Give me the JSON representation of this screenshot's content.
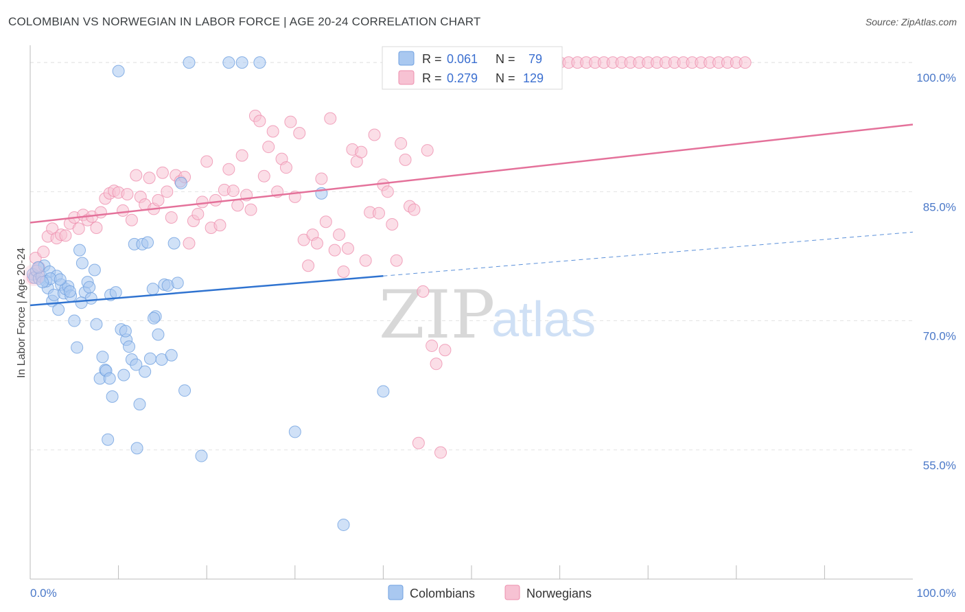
{
  "title": "COLOMBIAN VS NORWEGIAN IN LABOR FORCE | AGE 20-24 CORRELATION CHART",
  "source": "Source: ZipAtlas.com",
  "watermark": {
    "zip": "ZIP",
    "atlas": "atlas"
  },
  "colors": {
    "colombians": "#6fa0e0",
    "colombians_fill": "#a9c8f0",
    "colombians_line": "#2f73d0",
    "norwegians": "#ee8fae",
    "norwegians_fill": "#f7c2d3",
    "norwegians_line": "#e4719a",
    "accent_text": "#3b6fd0"
  },
  "legend_box": {
    "rows": [
      {
        "r_label": "R =",
        "r_value": "0.061",
        "n_label": "N =",
        "n_value": "79"
      },
      {
        "r_label": "R =",
        "r_value": "0.279",
        "n_label": "N =",
        "n_value": "129"
      }
    ]
  },
  "bottom_legend": [
    "Colombians",
    "Norwegians"
  ],
  "chart_data": {
    "type": "scatter",
    "title": "COLOMBIAN VS NORWEGIAN IN LABOR FORCE | AGE 20-24 CORRELATION CHART",
    "xlabel": "",
    "ylabel": "In Labor Force | Age 20-24",
    "xlim": [
      0,
      100
    ],
    "ylim": [
      40,
      102
    ],
    "x_tick_labels": [
      "0.0%",
      "100.0%"
    ],
    "y_ticks": [
      55,
      70,
      85,
      100
    ],
    "y_tick_labels": [
      "55.0%",
      "70.0%",
      "85.0%",
      "100.0%"
    ],
    "grid": true,
    "legend_position": "top-center",
    "series": [
      {
        "name": "Colombians",
        "R": 0.061,
        "N": 79,
        "trend": {
          "x_solid": [
            0,
            40
          ],
          "y_solid": [
            71.8,
            75.2
          ],
          "x_dashed": [
            40,
            100
          ],
          "y_dashed": [
            75.2,
            80.3
          ]
        },
        "points": [
          [
            0.3,
            75.4
          ],
          [
            0.5,
            75.0
          ],
          [
            0.7,
            75.8
          ],
          [
            1.0,
            74.9
          ],
          [
            1.3,
            75.1
          ],
          [
            1.6,
            76.4
          ],
          [
            2.0,
            73.8
          ],
          [
            2.2,
            75.7
          ],
          [
            2.5,
            72.3
          ],
          [
            2.7,
            73.0
          ],
          [
            3.0,
            75.2
          ],
          [
            3.2,
            71.3
          ],
          [
            3.5,
            74.2
          ],
          [
            3.8,
            73.2
          ],
          [
            4.0,
            73.7
          ],
          [
            4.3,
            74.0
          ],
          [
            4.6,
            72.9
          ],
          [
            5.0,
            70.0
          ],
          [
            5.3,
            66.9
          ],
          [
            5.6,
            78.2
          ],
          [
            5.9,
            76.7
          ],
          [
            6.2,
            73.3
          ],
          [
            6.5,
            74.5
          ],
          [
            6.9,
            72.6
          ],
          [
            7.3,
            75.9
          ],
          [
            7.5,
            69.6
          ],
          [
            7.9,
            63.3
          ],
          [
            8.2,
            65.8
          ],
          [
            8.5,
            64.3
          ],
          [
            8.8,
            56.2
          ],
          [
            9.1,
            73.0
          ],
          [
            9.3,
            61.2
          ],
          [
            9.7,
            73.3
          ],
          [
            10.0,
            99.0
          ],
          [
            10.3,
            69.0
          ],
          [
            10.6,
            63.7
          ],
          [
            10.9,
            67.8
          ],
          [
            11.2,
            67.0
          ],
          [
            11.5,
            65.5
          ],
          [
            11.8,
            78.9
          ],
          [
            12.1,
            55.2
          ],
          [
            12.4,
            60.3
          ],
          [
            12.7,
            78.9
          ],
          [
            13.0,
            64.1
          ],
          [
            13.3,
            79.1
          ],
          [
            13.6,
            65.6
          ],
          [
            13.9,
            73.7
          ],
          [
            14.2,
            70.5
          ],
          [
            14.5,
            68.4
          ],
          [
            14.9,
            65.5
          ],
          [
            15.2,
            74.2
          ],
          [
            15.6,
            74.1
          ],
          [
            16.0,
            66.0
          ],
          [
            16.3,
            79.0
          ],
          [
            16.7,
            74.4
          ],
          [
            17.1,
            86.0
          ],
          [
            17.5,
            61.9
          ],
          [
            18.0,
            100.0
          ],
          [
            19.4,
            54.3
          ],
          [
            22.5,
            100.0
          ],
          [
            24.0,
            100.0
          ],
          [
            26.0,
            100.0
          ],
          [
            30.0,
            57.1
          ],
          [
            33.0,
            84.8
          ],
          [
            35.5,
            46.3
          ],
          [
            40.0,
            61.8
          ],
          [
            1.8,
            74.6
          ],
          [
            2.3,
            74.9
          ],
          [
            0.9,
            76.2
          ],
          [
            1.4,
            74.5
          ],
          [
            3.4,
            74.8
          ],
          [
            4.5,
            73.4
          ],
          [
            5.8,
            72.1
          ],
          [
            6.7,
            73.9
          ],
          [
            8.6,
            64.2
          ],
          [
            9.0,
            63.3
          ],
          [
            10.8,
            68.8
          ],
          [
            12.0,
            64.9
          ],
          [
            14.0,
            70.3
          ]
        ]
      },
      {
        "name": "Norwegians",
        "R": 0.279,
        "N": 129,
        "trend": {
          "x_solid": [
            0,
            100
          ],
          "y_solid": [
            81.4,
            92.8
          ]
        },
        "points": [
          [
            0.3,
            75.0
          ],
          [
            0.6,
            77.3
          ],
          [
            1.0,
            76.2
          ],
          [
            1.5,
            78.0
          ],
          [
            2.0,
            79.8
          ],
          [
            2.5,
            80.7
          ],
          [
            3.0,
            79.6
          ],
          [
            3.5,
            80.0
          ],
          [
            4.0,
            79.9
          ],
          [
            4.5,
            81.3
          ],
          [
            5.0,
            82.0
          ],
          [
            5.5,
            80.7
          ],
          [
            6.0,
            82.3
          ],
          [
            6.5,
            81.7
          ],
          [
            7.0,
            82.1
          ],
          [
            7.5,
            80.8
          ],
          [
            8.0,
            82.6
          ],
          [
            8.5,
            84.2
          ],
          [
            9.0,
            84.8
          ],
          [
            9.5,
            85.1
          ],
          [
            10.0,
            84.9
          ],
          [
            10.5,
            82.8
          ],
          [
            11.0,
            84.7
          ],
          [
            11.5,
            81.7
          ],
          [
            12.0,
            86.9
          ],
          [
            12.5,
            84.4
          ],
          [
            13.0,
            83.5
          ],
          [
            13.5,
            86.6
          ],
          [
            14.0,
            83.0
          ],
          [
            14.5,
            84.0
          ],
          [
            15.0,
            87.2
          ],
          [
            15.5,
            85.0
          ],
          [
            16.0,
            82.0
          ],
          [
            16.5,
            86.9
          ],
          [
            17.0,
            86.2
          ],
          [
            17.5,
            86.7
          ],
          [
            18.0,
            79.0
          ],
          [
            18.5,
            81.6
          ],
          [
            19.0,
            82.4
          ],
          [
            19.5,
            83.8
          ],
          [
            20.0,
            88.5
          ],
          [
            20.5,
            80.8
          ],
          [
            21.0,
            84.0
          ],
          [
            21.5,
            81.1
          ],
          [
            22.0,
            85.2
          ],
          [
            22.5,
            87.6
          ],
          [
            23.0,
            85.1
          ],
          [
            23.5,
            83.4
          ],
          [
            24.0,
            89.2
          ],
          [
            24.5,
            84.6
          ],
          [
            25.0,
            82.9
          ],
          [
            25.5,
            93.8
          ],
          [
            26.0,
            93.2
          ],
          [
            26.5,
            86.8
          ],
          [
            27.0,
            90.2
          ],
          [
            27.5,
            92.0
          ],
          [
            28.0,
            85.0
          ],
          [
            28.5,
            88.8
          ],
          [
            29.0,
            87.8
          ],
          [
            29.5,
            93.1
          ],
          [
            30.0,
            84.4
          ],
          [
            30.5,
            91.8
          ],
          [
            31.0,
            79.4
          ],
          [
            31.5,
            76.4
          ],
          [
            32.0,
            80.0
          ],
          [
            32.5,
            79.0
          ],
          [
            33.0,
            86.5
          ],
          [
            33.5,
            81.5
          ],
          [
            34.0,
            93.5
          ],
          [
            34.5,
            78.2
          ],
          [
            35.0,
            80.0
          ],
          [
            35.5,
            75.7
          ],
          [
            36.0,
            78.4
          ],
          [
            36.5,
            89.9
          ],
          [
            37.0,
            88.5
          ],
          [
            37.5,
            89.6
          ],
          [
            38.0,
            77.0
          ],
          [
            38.5,
            82.6
          ],
          [
            39.0,
            91.6
          ],
          [
            39.5,
            82.5
          ],
          [
            40.0,
            85.8
          ],
          [
            40.5,
            85.0
          ],
          [
            41.0,
            81.2
          ],
          [
            41.5,
            77.0
          ],
          [
            42.0,
            90.6
          ],
          [
            42.5,
            88.7
          ],
          [
            43.0,
            83.3
          ],
          [
            43.5,
            82.9
          ],
          [
            44.0,
            55.8
          ],
          [
            44.5,
            73.4
          ],
          [
            45.0,
            89.8
          ],
          [
            45.5,
            67.1
          ],
          [
            46.0,
            65.0
          ],
          [
            46.5,
            54.7
          ],
          [
            47.0,
            66.6
          ],
          [
            48.0,
            100.0
          ],
          [
            49.0,
            100.0
          ],
          [
            50.0,
            100.0
          ],
          [
            51.0,
            100.0
          ],
          [
            52.0,
            100.0
          ],
          [
            53.0,
            100.0
          ],
          [
            54.0,
            100.0
          ],
          [
            55.0,
            100.0
          ],
          [
            56.0,
            100.0
          ],
          [
            57.0,
            100.0
          ],
          [
            58.0,
            100.0
          ],
          [
            59.0,
            100.0
          ],
          [
            60.0,
            100.0
          ],
          [
            61.0,
            100.0
          ],
          [
            62.0,
            100.0
          ],
          [
            63.0,
            100.0
          ],
          [
            64.0,
            100.0
          ],
          [
            65.0,
            100.0
          ],
          [
            66.0,
            100.0
          ],
          [
            67.0,
            100.0
          ],
          [
            68.0,
            100.0
          ],
          [
            69.0,
            100.0
          ],
          [
            70.0,
            100.0
          ],
          [
            71.0,
            100.0
          ],
          [
            72.0,
            100.0
          ],
          [
            73.0,
            100.0
          ],
          [
            74.0,
            100.0
          ],
          [
            75.0,
            100.0
          ],
          [
            76.0,
            100.0
          ],
          [
            77.0,
            100.0
          ],
          [
            78.0,
            100.0
          ],
          [
            79.0,
            100.0
          ],
          [
            80.0,
            100.0
          ],
          [
            81.0,
            100.0
          ]
        ]
      }
    ]
  }
}
